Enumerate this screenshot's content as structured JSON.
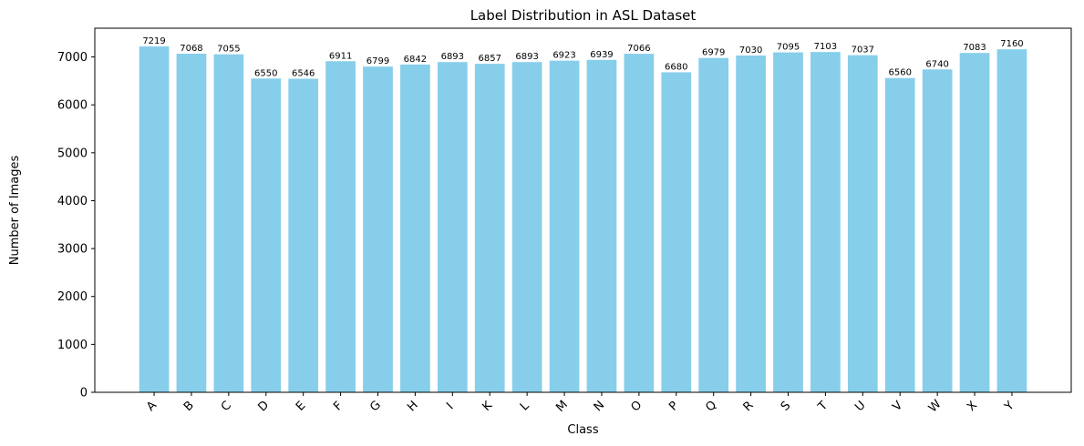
{
  "chart_data": {
    "type": "bar",
    "title": "Label Distribution in ASL Dataset",
    "xlabel": "Class",
    "ylabel": "Number of Images",
    "ylim": [
      0,
      7600
    ],
    "yticks": [
      0,
      1000,
      2000,
      3000,
      4000,
      5000,
      6000,
      7000
    ],
    "grid": false,
    "bar_color": "#87CEEB",
    "categories": [
      "A",
      "B",
      "C",
      "D",
      "E",
      "F",
      "G",
      "H",
      "I",
      "K",
      "L",
      "M",
      "N",
      "O",
      "P",
      "Q",
      "R",
      "S",
      "T",
      "U",
      "V",
      "W",
      "X",
      "Y"
    ],
    "values": [
      7219,
      7068,
      7055,
      6550,
      6546,
      6911,
      6799,
      6842,
      6893,
      6857,
      6893,
      6923,
      6939,
      7066,
      6680,
      6979,
      7030,
      7095,
      7103,
      7037,
      6560,
      6740,
      7083,
      7160
    ]
  }
}
